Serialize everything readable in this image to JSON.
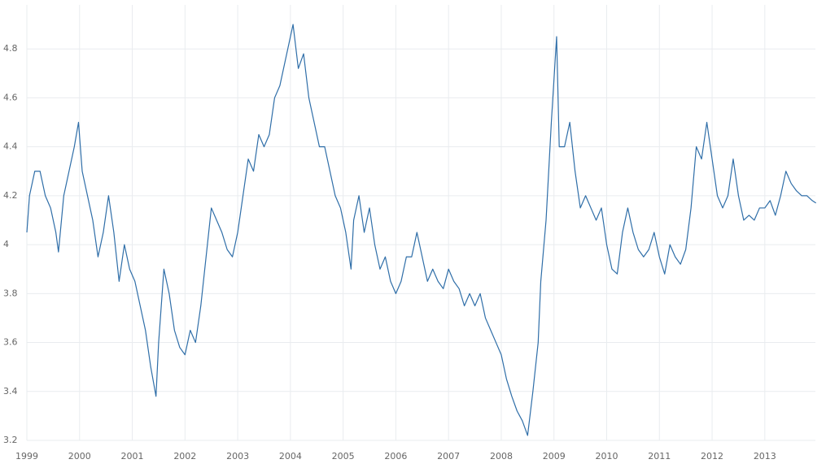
{
  "chart_data": {
    "type": "line",
    "x": [
      1999.0,
      1999.05,
      1999.15,
      1999.25,
      1999.35,
      1999.45,
      1999.55,
      1999.6,
      1999.7,
      1999.8,
      1999.9,
      1999.98,
      2000.05,
      2000.15,
      2000.25,
      2000.35,
      2000.45,
      2000.55,
      2000.65,
      2000.75,
      2000.85,
      2000.95,
      2001.05,
      2001.15,
      2001.25,
      2001.35,
      2001.45,
      2001.5,
      2001.6,
      2001.7,
      2001.8,
      2001.9,
      2002.0,
      2002.1,
      2002.2,
      2002.3,
      2002.4,
      2002.5,
      2002.6,
      2002.7,
      2002.8,
      2002.9,
      2003.0,
      2003.1,
      2003.2,
      2003.3,
      2003.4,
      2003.5,
      2003.6,
      2003.7,
      2003.8,
      2003.9,
      2004.05,
      2004.15,
      2004.25,
      2004.35,
      2004.45,
      2004.55,
      2004.65,
      2004.75,
      2004.85,
      2004.95,
      2005.05,
      2005.15,
      2005.2,
      2005.3,
      2005.4,
      2005.5,
      2005.6,
      2005.7,
      2005.8,
      2005.9,
      2006.0,
      2006.1,
      2006.2,
      2006.3,
      2006.4,
      2006.5,
      2006.6,
      2006.7,
      2006.8,
      2006.9,
      2007.0,
      2007.1,
      2007.2,
      2007.3,
      2007.4,
      2007.5,
      2007.6,
      2007.7,
      2007.8,
      2007.9,
      2008.0,
      2008.1,
      2008.2,
      2008.3,
      2008.4,
      2008.5,
      2008.6,
      2008.7,
      2008.75,
      2008.85,
      2008.95,
      2009.05,
      2009.1,
      2009.2,
      2009.3,
      2009.4,
      2009.5,
      2009.6,
      2009.7,
      2009.8,
      2009.9,
      2010.0,
      2010.1,
      2010.2,
      2010.3,
      2010.4,
      2010.5,
      2010.6,
      2010.7,
      2010.8,
      2010.9,
      2011.0,
      2011.1,
      2011.2,
      2011.3,
      2011.4,
      2011.5,
      2011.6,
      2011.7,
      2011.8,
      2011.9,
      2012.0,
      2012.1,
      2012.2,
      2012.3,
      2012.4,
      2012.5,
      2012.6,
      2012.7,
      2012.8,
      2012.9,
      2013.0,
      2013.1,
      2013.2,
      2013.3,
      2013.4,
      2013.5,
      2013.6,
      2013.7,
      2013.8,
      2013.9,
      2013.97
    ],
    "series": [
      {
        "color": "#2f6ea8",
        "values": [
          4.05,
          4.2,
          4.3,
          4.3,
          4.2,
          4.15,
          4.05,
          3.97,
          4.2,
          4.3,
          4.4,
          4.5,
          4.3,
          4.2,
          4.1,
          3.95,
          4.05,
          4.2,
          4.05,
          3.85,
          4.0,
          3.9,
          3.85,
          3.75,
          3.65,
          3.5,
          3.38,
          3.6,
          3.9,
          3.8,
          3.65,
          3.58,
          3.55,
          3.65,
          3.6,
          3.75,
          3.95,
          4.15,
          4.1,
          4.05,
          3.98,
          3.95,
          4.05,
          4.2,
          4.35,
          4.3,
          4.45,
          4.4,
          4.45,
          4.6,
          4.65,
          4.75,
          4.9,
          4.72,
          4.78,
          4.6,
          4.5,
          4.4,
          4.4,
          4.3,
          4.2,
          4.15,
          4.05,
          3.9,
          4.1,
          4.2,
          4.05,
          4.15,
          4.0,
          3.9,
          3.95,
          3.85,
          3.8,
          3.85,
          3.95,
          3.95,
          4.05,
          3.95,
          3.85,
          3.9,
          3.85,
          3.82,
          3.9,
          3.85,
          3.82,
          3.75,
          3.8,
          3.75,
          3.8,
          3.7,
          3.65,
          3.6,
          3.55,
          3.45,
          3.38,
          3.32,
          3.28,
          3.22,
          3.4,
          3.6,
          3.85,
          4.1,
          4.5,
          4.85,
          4.4,
          4.4,
          4.5,
          4.3,
          4.15,
          4.2,
          4.15,
          4.1,
          4.15,
          4.0,
          3.9,
          3.88,
          4.05,
          4.15,
          4.05,
          3.98,
          3.95,
          3.98,
          4.05,
          3.95,
          3.88,
          4.0,
          3.95,
          3.92,
          3.98,
          4.15,
          4.4,
          4.35,
          4.5,
          4.35,
          4.2,
          4.15,
          4.2,
          4.35,
          4.2,
          4.1,
          4.12,
          4.1,
          4.15,
          4.15,
          4.18,
          4.12,
          4.2,
          4.3,
          4.25,
          4.22,
          4.2,
          4.2,
          4.18,
          4.17
        ]
      }
    ],
    "xlim": [
      1999,
      2013.96
    ],
    "xticks": [
      1999,
      2000,
      2001,
      2002,
      2003,
      2004,
      2005,
      2006,
      2007,
      2008,
      2009,
      2010,
      2011,
      2012,
      2013
    ],
    "ylim": [
      3.2,
      4.98
    ],
    "yticks": [
      3.2,
      3.4,
      3.6,
      3.8,
      4,
      4.2,
      4.4,
      4.6,
      4.8
    ],
    "grid": true
  }
}
